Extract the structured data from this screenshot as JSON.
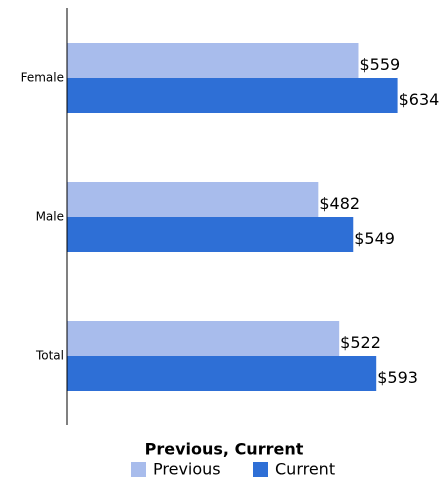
{
  "chart_data": {
    "type": "hbar",
    "categories": [
      "Female",
      "Male",
      "Total"
    ],
    "series": [
      {
        "name": "Previous",
        "color": "#a8bcec",
        "values": [
          559,
          482,
          522
        ],
        "value_labels": [
          "$559",
          "$482",
          "$522"
        ]
      },
      {
        "name": "Current",
        "color": "#2e6fd6",
        "values": [
          634,
          549,
          593
        ],
        "value_labels": [
          "$634",
          "$549",
          "$593"
        ]
      }
    ],
    "xlim": [
      0,
      700
    ],
    "legend_title": "Previous, Current",
    "legend": "bottom"
  }
}
